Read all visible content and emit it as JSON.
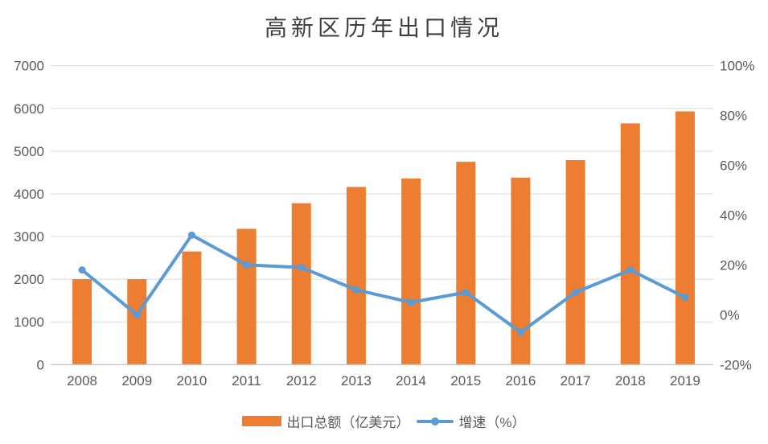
{
  "chart_data": {
    "type": "combo-bar-line",
    "title": "高新区历年出口情况",
    "categories": [
      "2008",
      "2009",
      "2010",
      "2011",
      "2012",
      "2013",
      "2014",
      "2015",
      "2016",
      "2017",
      "2018",
      "2019"
    ],
    "series": [
      {
        "name": "出口总额（亿美元）",
        "type": "bar",
        "axis": "left",
        "color": "#ED7D31",
        "values": [
          2000,
          2000,
          2650,
          3180,
          3780,
          4160,
          4360,
          4750,
          4380,
          4790,
          5650,
          5930
        ]
      },
      {
        "name": "增速（%）",
        "type": "line",
        "axis": "right",
        "color": "#5B9BD5",
        "values": [
          18,
          0,
          32,
          20,
          19,
          10,
          5,
          9,
          -7,
          9,
          18,
          7
        ]
      }
    ],
    "axes": {
      "left": {
        "min": 0,
        "max": 7000,
        "step": 1000,
        "tick_labels": [
          "0",
          "1000",
          "2000",
          "3000",
          "4000",
          "5000",
          "6000",
          "7000"
        ]
      },
      "right": {
        "min": -20,
        "max": 100,
        "step": 20,
        "tick_labels": [
          "-20%",
          "0%",
          "20%",
          "40%",
          "60%",
          "80%",
          "100%"
        ]
      }
    },
    "grid": true,
    "legend_position": "bottom",
    "style": {
      "grid_color": "#D9D9D9",
      "axis_line_color": "#C6C6C6",
      "tick_text_color": "#595959",
      "title_color": "#3F3F3F",
      "background": "#FFFFFF"
    }
  }
}
